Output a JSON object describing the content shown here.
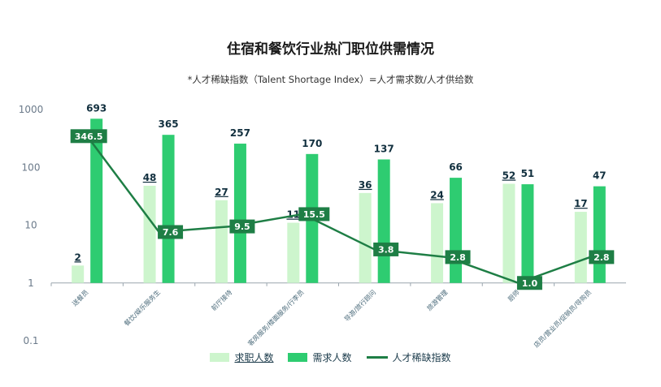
{
  "title": "住宿和餐饮行业热门职位供需情况",
  "subtitle": "*人才稀缺指数（Talent Shortage Index）=人才需求数/人才供给数",
  "colors": {
    "supply": "#cdf5cd",
    "demand": "#2ecc71",
    "ratio_line": "#1e7e45",
    "ratio_label_bg": "#1e7e45"
  },
  "chart_data": {
    "type": "bar",
    "yscale": "log",
    "ylim": [
      0.1,
      1000
    ],
    "yticks": [
      "0.1",
      "1",
      "10",
      "100",
      "1000"
    ],
    "categories": [
      "送餐员",
      "餐饮/娱乐服务生",
      "前厅接待",
      "客房服务/楼面服务/行李员",
      "导游/旅行顾问",
      "旅游管理",
      "厨师",
      "店员/营业员/促销员/导购员"
    ],
    "series": [
      {
        "name": "求职人数",
        "type": "bar",
        "values": [
          2,
          48,
          27,
          11,
          36,
          24,
          52,
          17
        ]
      },
      {
        "name": "需求人数",
        "type": "bar",
        "values": [
          693,
          365,
          257,
          170,
          137,
          66,
          51,
          47
        ]
      },
      {
        "name": "人才稀缺指数",
        "type": "line",
        "values": [
          346.5,
          7.6,
          9.5,
          15.5,
          3.8,
          2.8,
          1.0,
          2.8
        ]
      }
    ],
    "labels": {
      "supply": [
        "2",
        "48",
        "27",
        "11",
        "36",
        "24",
        "52",
        "17"
      ],
      "demand": [
        "693",
        "365",
        "257",
        "170",
        "137",
        "66",
        "51",
        "47"
      ],
      "ratio": [
        "346.5",
        "7.6",
        "9.5",
        "15.5",
        "3.8",
        "2.8",
        "1.0",
        "2.8"
      ]
    }
  },
  "legend": {
    "supply": "求职人数",
    "demand": "需求人数",
    "ratio": "人才稀缺指数"
  }
}
